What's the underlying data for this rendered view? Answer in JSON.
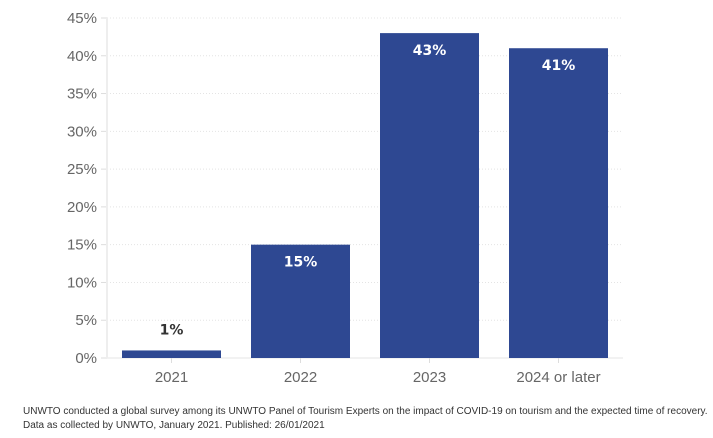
{
  "chart_data": {
    "type": "bar",
    "categories": [
      "2021",
      "2022",
      "2023",
      "2024 or later"
    ],
    "values": [
      1,
      15,
      43,
      41
    ],
    "data_labels": [
      "1%",
      "15%",
      "43%",
      "41%"
    ],
    "title": "",
    "xlabel": "",
    "ylabel": "",
    "ylim": [
      0,
      45
    ],
    "yticks": [
      "0%",
      "5%",
      "10%",
      "15%",
      "20%",
      "25%",
      "30%",
      "35%",
      "40%",
      "45%"
    ],
    "grid": true,
    "legend": "none",
    "bar_color": "#2e4892",
    "label_color_inside": "#ffffff",
    "label_color_outside": "#333333"
  },
  "footnote": {
    "line1": "UNWTO conducted a global survey among its UNWTO Panel of Tourism Experts on the impact of COVID-19 on tourism and the expected time of recovery.",
    "line2": "Data as collected by UNWTO, January 2021. Published: 26/01/2021"
  }
}
